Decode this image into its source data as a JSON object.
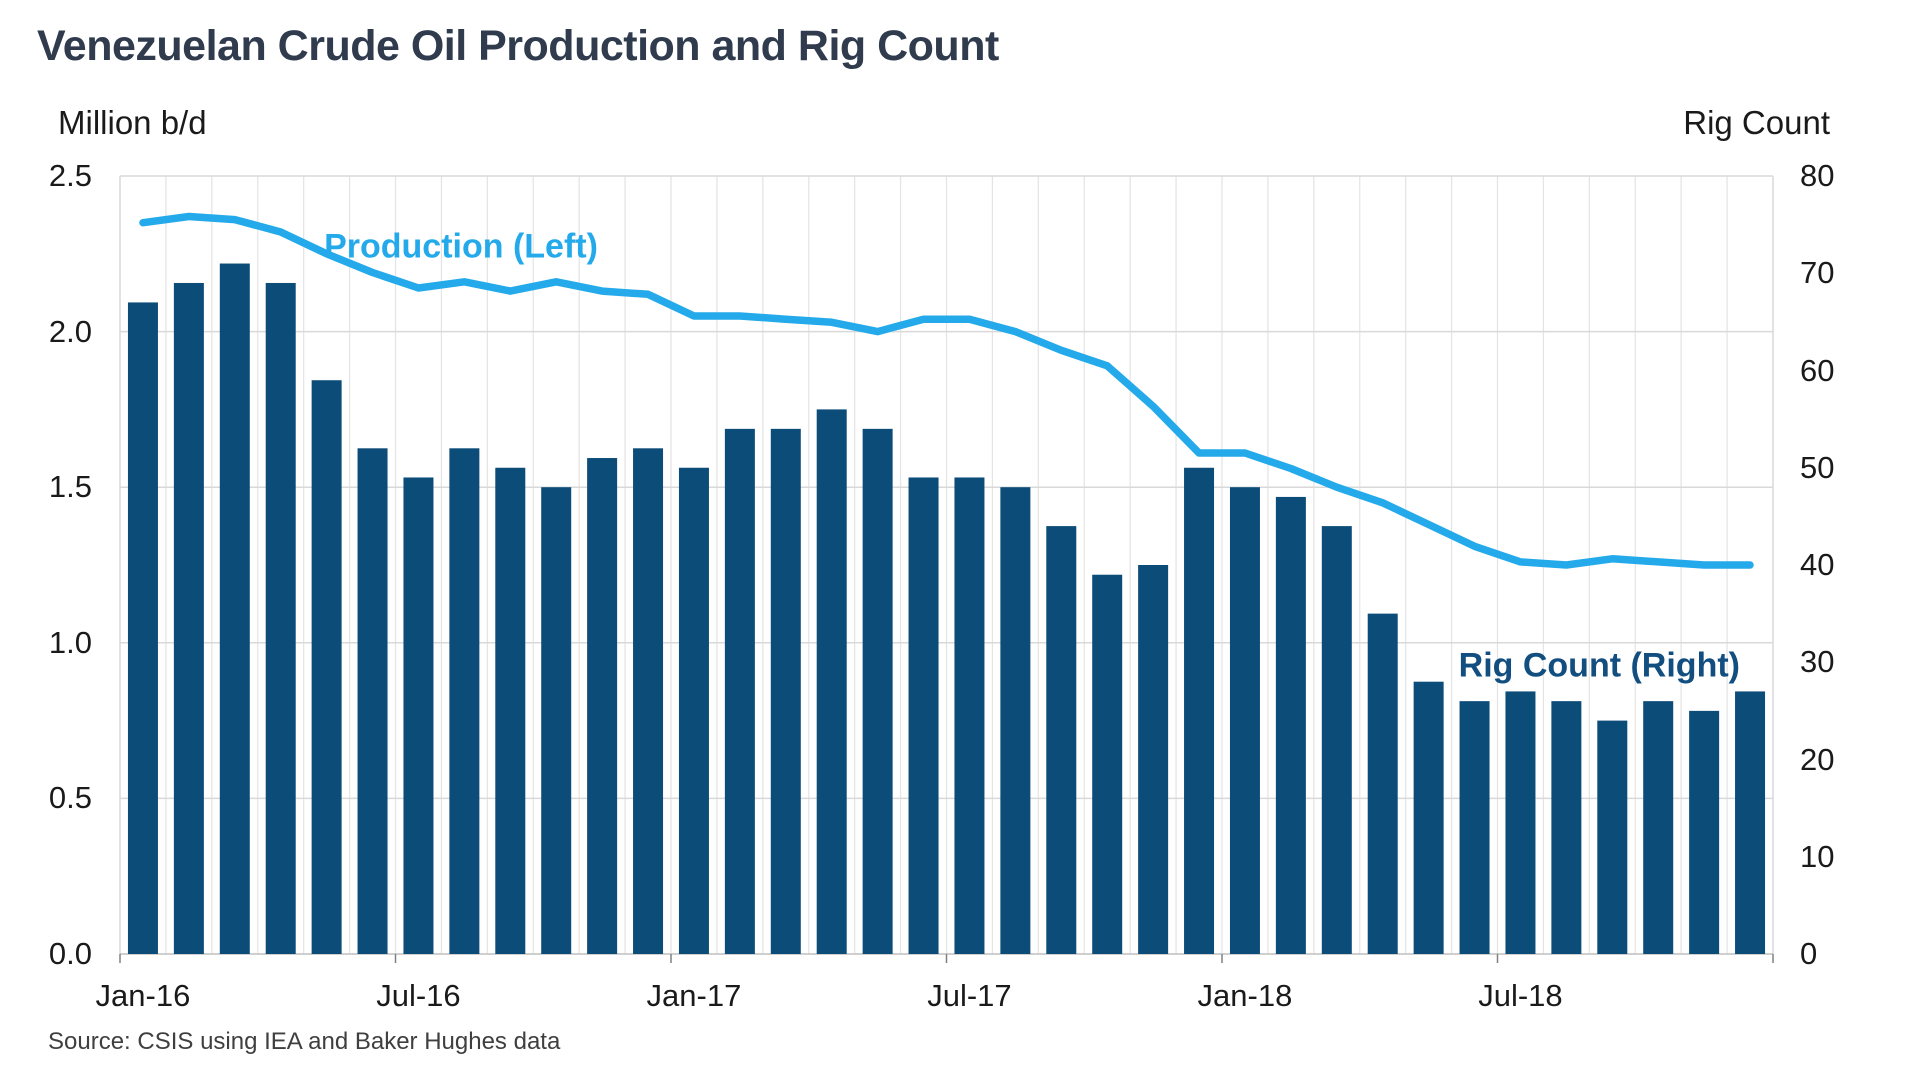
{
  "title": "Venezuelan Crude Oil Production and Rig Count",
  "left_axis": {
    "title": "Million b/d",
    "tick_labels": [
      "0.0",
      "0.5",
      "1.0",
      "1.5",
      "2.0",
      "2.5"
    ],
    "tick_values": [
      0,
      0.5,
      1.0,
      1.5,
      2.0,
      2.5
    ]
  },
  "right_axis": {
    "title": "Rig Count",
    "tick_labels": [
      "0",
      "10",
      "20",
      "30",
      "40",
      "50",
      "60",
      "70",
      "80"
    ],
    "tick_values": [
      0,
      10,
      20,
      30,
      40,
      50,
      60,
      70,
      80
    ]
  },
  "x_axis": {
    "tick_labels": [
      "Jan-16",
      "Jul-16",
      "Jan-17",
      "Jul-17",
      "Jan-18",
      "Jul-18"
    ],
    "tick_label_months": [
      0,
      6,
      12,
      18,
      24,
      30
    ],
    "tick_mark_boundaries": [
      0,
      6,
      12,
      18,
      24,
      30,
      36
    ]
  },
  "series_labels": {
    "production": "Production (Left)",
    "rig": "Rig Count (Right)"
  },
  "source": "Source: CSIS using IEA and Baker Hughes data",
  "colors": {
    "bar": "#0C4C78",
    "line": "#24AAEA",
    "title": "#303C4E",
    "axis_text": "#1a1a1a",
    "source_text": "#3F3F3F",
    "h_gridline": "#D9D9D9",
    "v_gridline": "#E4E4E4",
    "baseline": "#BFBFBF",
    "tick_mark": "#808080",
    "production_label": "#24AAEA",
    "rig_label": "#124F80"
  },
  "chart_data": {
    "type": "combo",
    "title": "Venezuelan Crude Oil Production and Rig Count",
    "xlabel": "",
    "ylabel_left": "Million b/d",
    "ylabel_right": "Rig Count",
    "ylim_left": [
      0,
      2.5
    ],
    "ylim_right": [
      0,
      80
    ],
    "grid": "horizontal-and-monthly-vertical",
    "legend_position": "inline-annotations",
    "months": [
      "Jan-16",
      "Feb-16",
      "Mar-16",
      "Apr-16",
      "May-16",
      "Jun-16",
      "Jul-16",
      "Aug-16",
      "Sep-16",
      "Oct-16",
      "Nov-16",
      "Dec-16",
      "Jan-17",
      "Feb-17",
      "Mar-17",
      "Apr-17",
      "May-17",
      "Jun-17",
      "Jul-17",
      "Aug-17",
      "Sep-17",
      "Oct-17",
      "Nov-17",
      "Dec-17",
      "Jan-18",
      "Feb-18",
      "Mar-18",
      "Apr-18",
      "May-18",
      "Jun-18",
      "Jul-18",
      "Aug-18",
      "Sep-18",
      "Oct-18",
      "Nov-18",
      "Dec-18"
    ],
    "series": [
      {
        "name": "Production (Left)",
        "type": "line",
        "axis": "left",
        "units": "million b/d",
        "values": [
          2.35,
          2.37,
          2.36,
          2.32,
          2.25,
          2.19,
          2.14,
          2.16,
          2.13,
          2.16,
          2.13,
          2.12,
          2.05,
          2.05,
          2.04,
          2.03,
          2.0,
          2.04,
          2.04,
          2.0,
          1.94,
          1.89,
          1.76,
          1.61,
          1.61,
          1.56,
          1.5,
          1.45,
          1.38,
          1.31,
          1.26,
          1.25,
          1.27,
          1.26,
          1.25,
          1.25
        ]
      },
      {
        "name": "Rig Count (Right)",
        "type": "bar",
        "axis": "right",
        "units": "rigs",
        "values": [
          67,
          69,
          71,
          69,
          59,
          52,
          49,
          52,
          50,
          48,
          51,
          52,
          50,
          54,
          54,
          56,
          54,
          49,
          49,
          48,
          44,
          39,
          40,
          50,
          48,
          47,
          44,
          35,
          28,
          26,
          27,
          26,
          24,
          26,
          25,
          27
        ]
      }
    ]
  }
}
